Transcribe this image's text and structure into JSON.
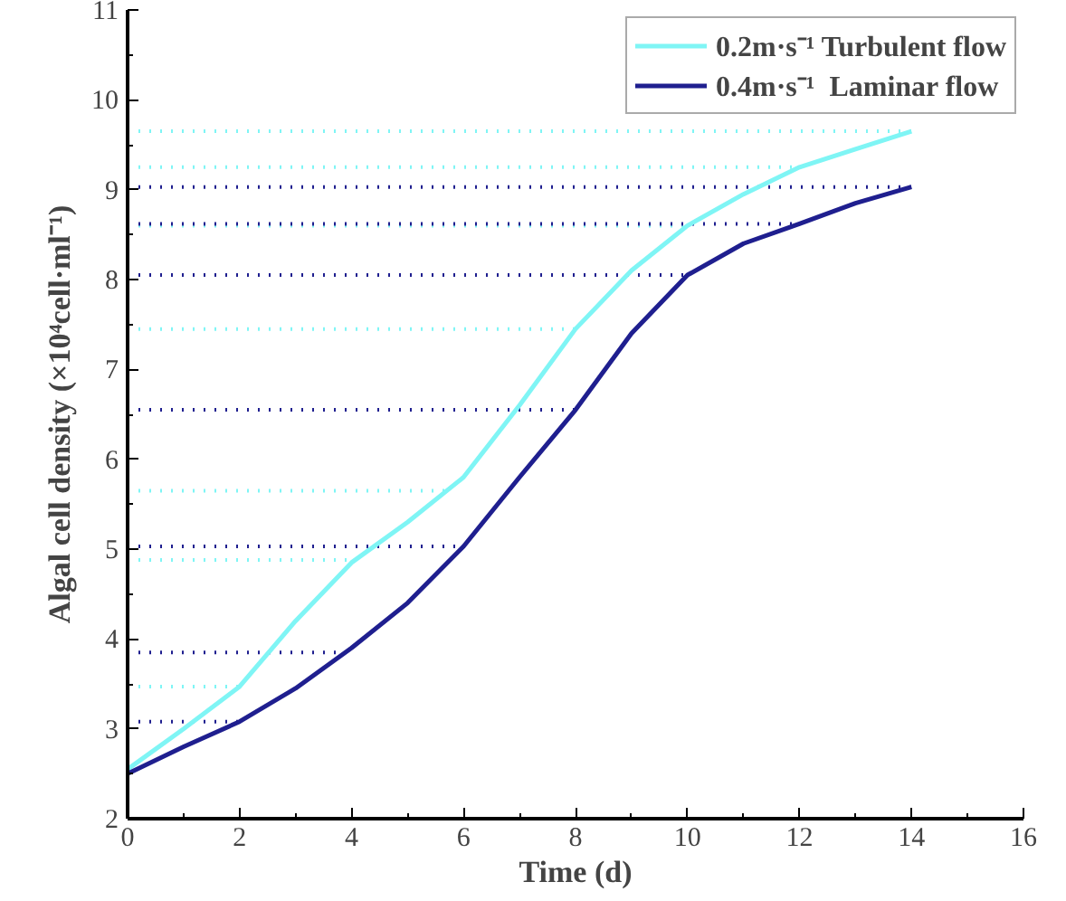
{
  "chart_data": {
    "type": "line",
    "xlabel": "Time (d)",
    "ylabel": "Algal cell density (×10⁴cell·ml⁻¹)",
    "xlim": [
      0,
      16
    ],
    "ylim": [
      2,
      11
    ],
    "xticks": [
      0,
      2,
      4,
      6,
      8,
      10,
      12,
      14,
      16
    ],
    "yticks": [
      2,
      3,
      4,
      5,
      6,
      7,
      8,
      9,
      10,
      11
    ],
    "grid": false,
    "legend": "top right",
    "marker": "none",
    "line_style": "solid",
    "series": [
      {
        "name": "0.2m·s⁻¹ Turbulent flow",
        "color": "#7ff5f5",
        "x": [
          0,
          1,
          2,
          3,
          4,
          5,
          6,
          7,
          8,
          9,
          10,
          11,
          12,
          13,
          14
        ],
        "values": [
          2.55,
          3.0,
          3.47,
          4.2,
          4.85,
          5.3,
          5.8,
          6.6,
          7.45,
          8.1,
          8.6,
          8.95,
          9.25,
          9.45,
          9.65
        ]
      },
      {
        "name": "0.4m·s⁻¹  Laminar flow",
        "color": "#1f1f8f",
        "x": [
          0,
          1,
          2,
          3,
          4,
          5,
          6,
          7,
          8,
          9,
          10,
          11,
          12,
          13,
          14
        ],
        "values": [
          2.5,
          2.8,
          3.08,
          3.45,
          3.9,
          4.4,
          5.03,
          5.8,
          6.55,
          7.4,
          8.05,
          8.4,
          8.62,
          8.85,
          9.03
        ]
      }
    ],
    "ref_lines": [
      {
        "axis": "y",
        "value": 9.65,
        "color": "#7ff5f5",
        "line_style": "dotted"
      },
      {
        "axis": "y",
        "value": 9.25,
        "color": "#7ff5f5",
        "line_style": "dotted"
      },
      {
        "axis": "y",
        "value": 8.6,
        "color": "#7ff5f5",
        "line_style": "dotted"
      },
      {
        "axis": "y",
        "value": 7.45,
        "color": "#7ff5f5",
        "line_style": "dotted"
      },
      {
        "axis": "y",
        "value": 5.65,
        "color": "#7ff5f5",
        "line_style": "dotted"
      },
      {
        "axis": "y",
        "value": 4.88,
        "color": "#7ff5f5",
        "line_style": "dotted"
      },
      {
        "axis": "y",
        "value": 3.47,
        "color": "#7ff5f5",
        "line_style": "dotted"
      },
      {
        "axis": "y",
        "value": 9.03,
        "color": "#1f1f8f",
        "line_style": "dotted"
      },
      {
        "axis": "y",
        "value": 8.62,
        "color": "#1f1f8f",
        "line_style": "dotted"
      },
      {
        "axis": "y",
        "value": 8.05,
        "color": "#1f1f8f",
        "line_style": "dotted"
      },
      {
        "axis": "y",
        "value": 6.55,
        "color": "#1f1f8f",
        "line_style": "dotted"
      },
      {
        "axis": "y",
        "value": 5.03,
        "color": "#1f1f8f",
        "line_style": "dotted"
      },
      {
        "axis": "y",
        "value": 3.85,
        "color": "#1f1f8f",
        "line_style": "dotted"
      },
      {
        "axis": "y",
        "value": 3.08,
        "color": "#1f1f8f",
        "line_style": "dotted"
      }
    ]
  }
}
